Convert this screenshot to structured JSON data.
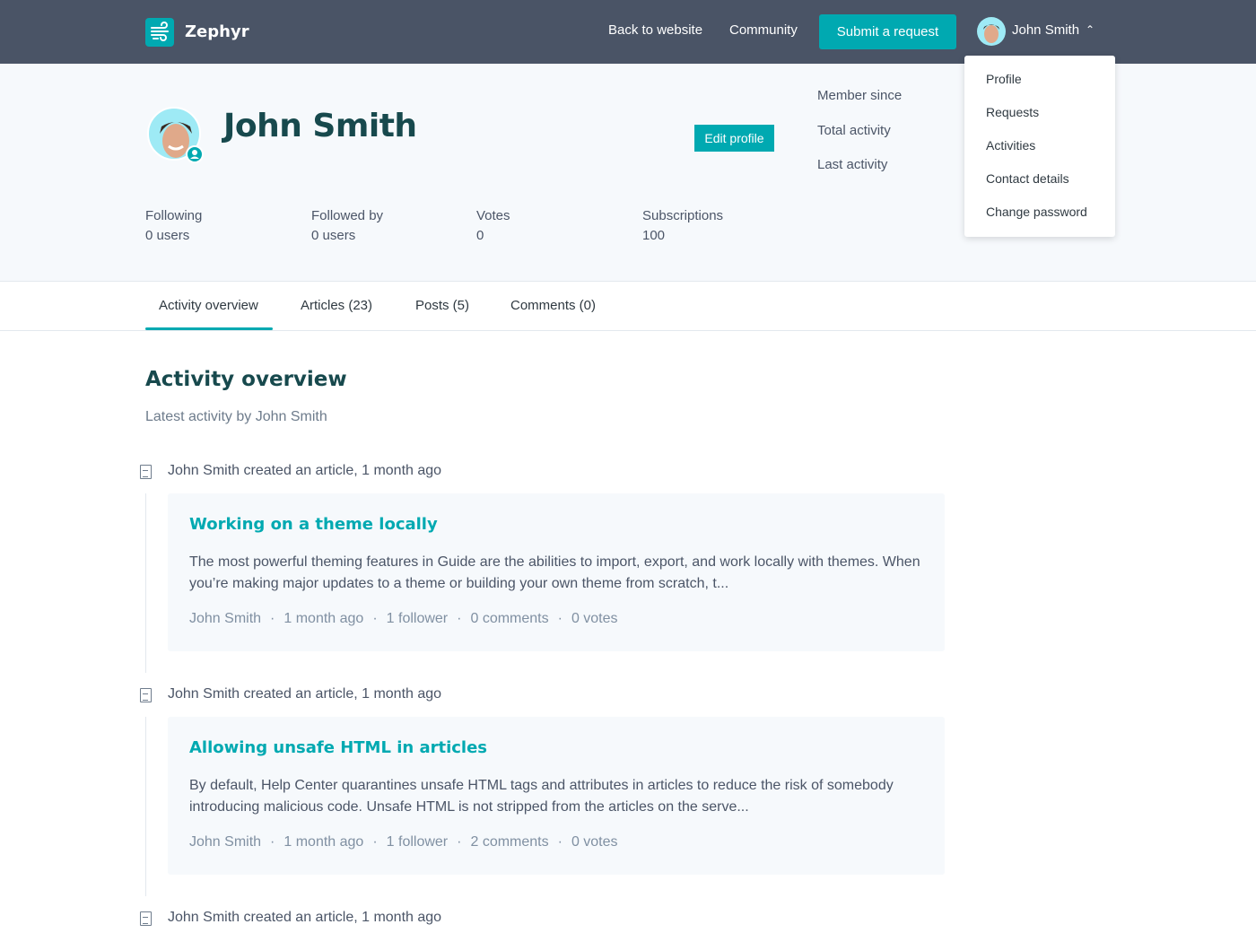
{
  "header": {
    "brand": "Zephyr",
    "back": "Back to website",
    "community": "Community",
    "submit": "Submit a request",
    "user": "John Smith"
  },
  "colors": {
    "accent": "#00a9b1",
    "header": "#4a5466"
  },
  "user_menu": [
    "Profile",
    "Requests",
    "Activities",
    "Contact details",
    "Change password"
  ],
  "profile": {
    "name": "John Smith",
    "edit": "Edit profile",
    "meta": [
      "Member since",
      "Total activity",
      "Last activity"
    ],
    "stats": [
      {
        "label": "Following",
        "value": "0 users"
      },
      {
        "label": "Followed by",
        "value": "0 users"
      },
      {
        "label": "Votes",
        "value": "0"
      },
      {
        "label": "Subscriptions",
        "value": "100"
      }
    ]
  },
  "tabs": [
    "Activity overview",
    "Articles (23)",
    "Posts (5)",
    "Comments (0)"
  ],
  "main": {
    "title": "Activity overview",
    "subtitle": "Latest activity by John Smith",
    "events": [
      {
        "text": "John Smith created an article, 1 month ago",
        "title": "Working on a theme locally",
        "body": "The most powerful theming features in Guide are the abilities to import, export, and work locally with themes. When you’re making major updates to a theme or building your own theme from scratch, t...",
        "meta": [
          "John Smith",
          "1 month ago",
          "1 follower",
          "0 comments",
          "0 votes"
        ]
      },
      {
        "text": "John Smith created an article, 1 month ago",
        "title": "Allowing unsafe HTML in articles",
        "body": "By default, Help Center quarantines unsafe HTML tags and attributes in articles to reduce the risk of somebody introducing malicious code. Unsafe HTML is not stripped from the articles on the serve...",
        "meta": [
          "John Smith",
          "1 month ago",
          "1 follower",
          "2 comments",
          "0 votes"
        ]
      },
      {
        "text": "John Smith created an article, 1 month ago"
      }
    ]
  }
}
